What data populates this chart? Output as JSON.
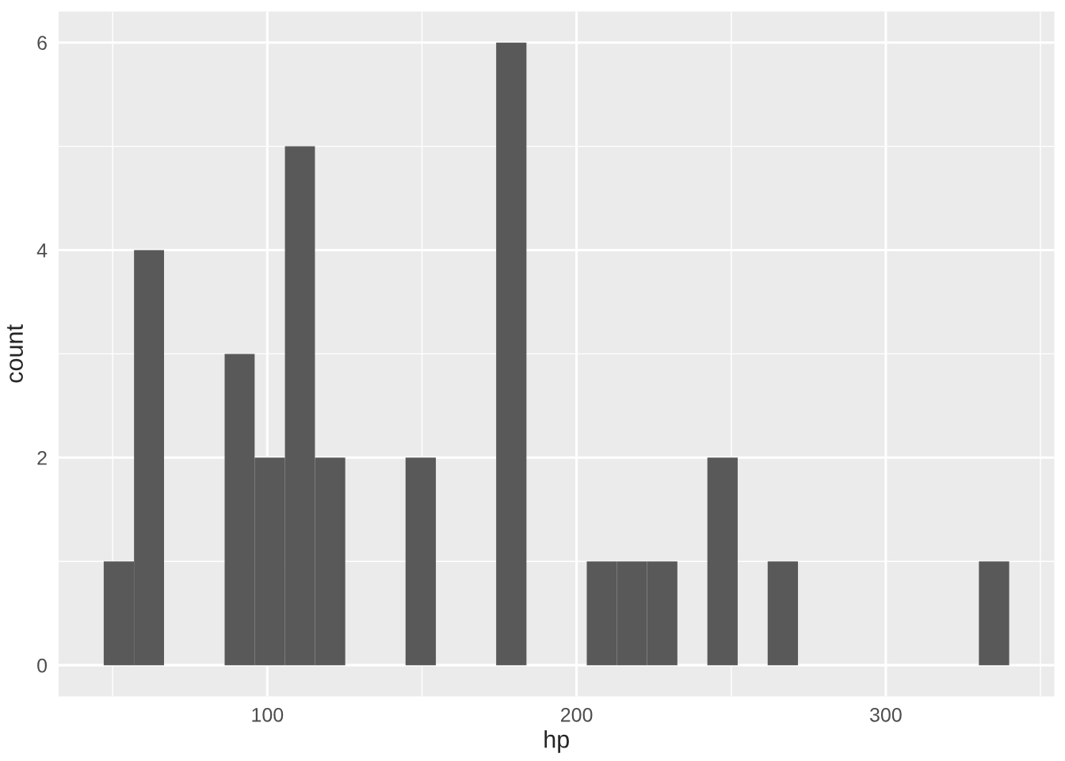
{
  "chart_data": {
    "type": "histogram",
    "xlabel": "hp",
    "ylabel": "count",
    "bins": [
      47.1,
      56.9,
      66.6,
      76.4,
      86.2,
      95.9,
      105.7,
      115.4,
      125.2,
      135.0,
      144.7,
      154.5,
      164.2,
      174.0,
      183.8,
      193.5,
      203.3,
      213.0,
      222.8,
      232.6,
      242.3,
      252.1,
      261.8,
      271.6,
      281.3,
      291.1,
      300.9,
      310.6,
      320.4,
      330.1,
      339.9
    ],
    "values": [
      1,
      4,
      0,
      0,
      3,
      2,
      5,
      2,
      0,
      0,
      2,
      0,
      0,
      6,
      0,
      0,
      1,
      1,
      1,
      0,
      2,
      0,
      1,
      0,
      0,
      0,
      0,
      0,
      0,
      1
    ],
    "color": "#595959",
    "xlim": [
      32.5,
      354.5
    ],
    "ylim": [
      -0.3,
      6.3
    ],
    "xticks": [
      100,
      200,
      300
    ],
    "yticks": [
      0,
      2,
      4,
      6
    ],
    "grid": true
  }
}
